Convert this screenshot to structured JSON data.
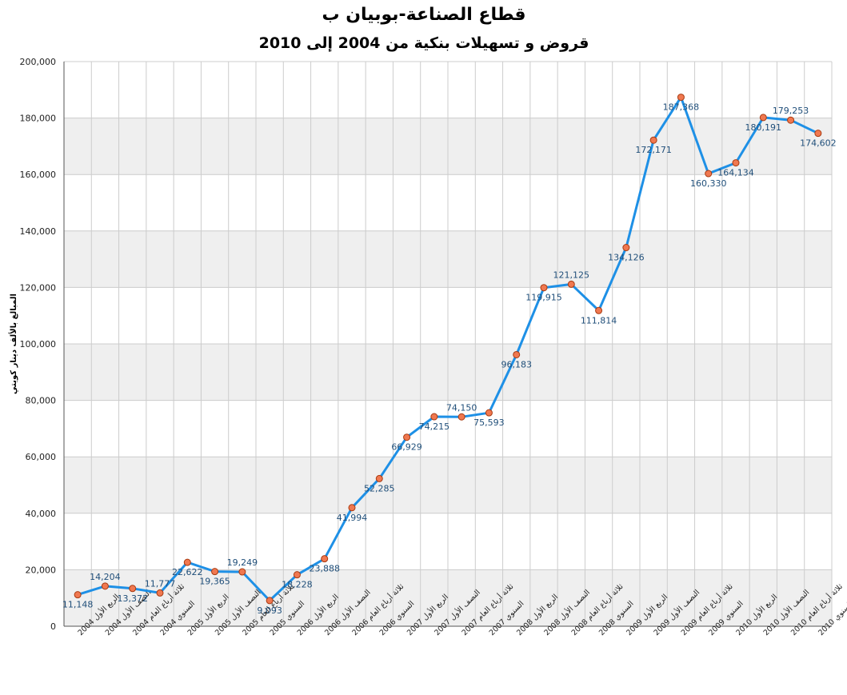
{
  "chart_data": {
    "type": "line",
    "title": "قطاع الصناعة-بوبيان ب",
    "subtitle": "قروض و تسهيلات بنكية من 2004 إلى 2010",
    "ylabel": "المبالغ بالألف دينار كويتي",
    "xlabel": "",
    "ylim": [
      0,
      200000
    ],
    "yticks": [
      0,
      20000,
      40000,
      60000,
      80000,
      100000,
      120000,
      140000,
      160000,
      180000,
      200000
    ],
    "ytick_labels": [
      "0",
      "20,000",
      "40,000",
      "60,000",
      "80,000",
      "100,000",
      "120,000",
      "140,000",
      "160,000",
      "180,000",
      "200,000"
    ],
    "grid": true,
    "legend": "none",
    "colors": {
      "line": "#1e90e6",
      "marker_fill": "#f07850",
      "marker_stroke": "#a83a10",
      "band": "#efefef",
      "grid": "#cccccc"
    },
    "categories": [
      "الربع الأول 2004",
      "النصف الأول 2004",
      "ثلاثة أرباع العام 2004",
      "السنوي 2004",
      "الربع الأول 2005",
      "النصف الأول 2005",
      "ثلاثة أرباع العام 2005",
      "السنوي 2005",
      "الربع الأول 2006",
      "النصف الأول 2006",
      "ثلاثة أرباع العام 2006",
      "السنوي 2006",
      "الربع الأول 2007",
      "النصف الأول 2007",
      "ثلاثة أرباع العام 2007",
      "السنوي 2007",
      "الربع الأول 2008",
      "النصف الأول 2008",
      "ثلاثة أرباع العام 2008",
      "السنوي 2008",
      "الربع الأول 2009",
      "النصف الأول 2009",
      "ثلاثة أرباع العام 2009",
      "السنوي 2009",
      "الربع الأول 2010",
      "النصف الأول 2010",
      "ثلاثة أرباع العام 2010",
      "السنوي 2010"
    ],
    "values": [
      11148,
      14204,
      13372,
      11777,
      22622,
      19365,
      19249,
      9093,
      18228,
      23888,
      41994,
      52285,
      66929,
      74215,
      74150,
      75593,
      96183,
      119915,
      121125,
      111814,
      134126,
      172171,
      187368,
      160330,
      164134,
      180191,
      179253,
      174602
    ],
    "data_labels": [
      "11,148",
      "14,204",
      "13,372",
      "11,777",
      "22,622",
      "19,365",
      "19,249",
      "9,093",
      "18,228",
      "23,888",
      "41,994",
      "52,285",
      "66,929",
      "74,215",
      "74,150",
      "75,593",
      "96,183",
      "119,915",
      "121,125",
      "111,814",
      "134,126",
      "172,171",
      "187,368",
      "160,330",
      "164,134",
      "180,191",
      "179,253",
      "174,602"
    ],
    "label_positions": [
      "below",
      "above",
      "below",
      "above",
      "below",
      "below",
      "above",
      "below",
      "below",
      "below",
      "below",
      "below",
      "below",
      "below",
      "above",
      "below",
      "below",
      "below",
      "above",
      "below",
      "below",
      "below",
      "below",
      "below",
      "below",
      "below",
      "above",
      "below"
    ]
  }
}
